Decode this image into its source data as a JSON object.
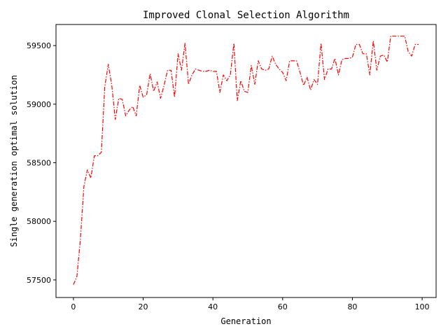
{
  "chart_data": {
    "type": "line",
    "title": "Improved Clonal Selection Algorithm",
    "xlabel": "Generation",
    "ylabel": "Single generation optimal solution",
    "xlim": [
      -5,
      104
    ],
    "ylim": [
      57350,
      59680
    ],
    "xticks": [
      0,
      20,
      40,
      60,
      80,
      100
    ],
    "yticks": [
      57500,
      58000,
      58500,
      59000,
      59500
    ],
    "grid": false,
    "legend": "none",
    "series": [
      {
        "color": "#ff0000",
        "line_style": "dash-dot",
        "x": [
          0,
          1,
          2,
          3,
          4,
          5,
          6,
          7,
          8,
          9,
          10,
          11,
          12,
          13,
          14,
          15,
          16,
          17,
          18,
          19,
          20,
          21,
          22,
          23,
          24,
          25,
          26,
          27,
          28,
          29,
          30,
          31,
          32,
          33,
          34,
          35,
          36,
          37,
          38,
          39,
          40,
          41,
          42,
          43,
          44,
          45,
          46,
          47,
          48,
          49,
          50,
          51,
          52,
          53,
          54,
          55,
          56,
          57,
          58,
          59,
          60,
          61,
          62,
          63,
          64,
          65,
          66,
          67,
          68,
          69,
          70,
          71,
          72,
          73,
          74,
          75,
          76,
          77,
          78,
          79,
          80,
          81,
          82,
          83,
          84,
          85,
          86,
          87,
          88,
          89,
          90,
          91,
          92,
          93,
          94,
          95,
          96,
          97,
          98,
          99
        ],
        "values": [
          57460,
          57530,
          57850,
          58300,
          58440,
          58370,
          58560,
          58560,
          58590,
          59150,
          59340,
          59160,
          58870,
          59050,
          59040,
          58900,
          58950,
          58980,
          58900,
          59160,
          59060,
          59080,
          59260,
          59110,
          59190,
          59050,
          59160,
          59290,
          59290,
          59060,
          59430,
          59290,
          59520,
          59170,
          59250,
          59300,
          59290,
          59280,
          59280,
          59290,
          59280,
          59280,
          59100,
          59250,
          59200,
          59250,
          59520,
          59030,
          59200,
          59110,
          59100,
          59330,
          59170,
          59370,
          59300,
          59290,
          59300,
          59410,
          59340,
          59300,
          59270,
          59200,
          59370,
          59370,
          59370,
          59270,
          59160,
          59230,
          59120,
          59210,
          59170,
          59520,
          59210,
          59300,
          59300,
          59390,
          59250,
          59380,
          59390,
          59390,
          59400,
          59510,
          59510,
          59430,
          59430,
          59250,
          59540,
          59290,
          59410,
          59420,
          59360,
          59580,
          59580,
          59580,
          59580,
          59580,
          59450,
          59410,
          59510,
          59510
        ]
      }
    ]
  }
}
